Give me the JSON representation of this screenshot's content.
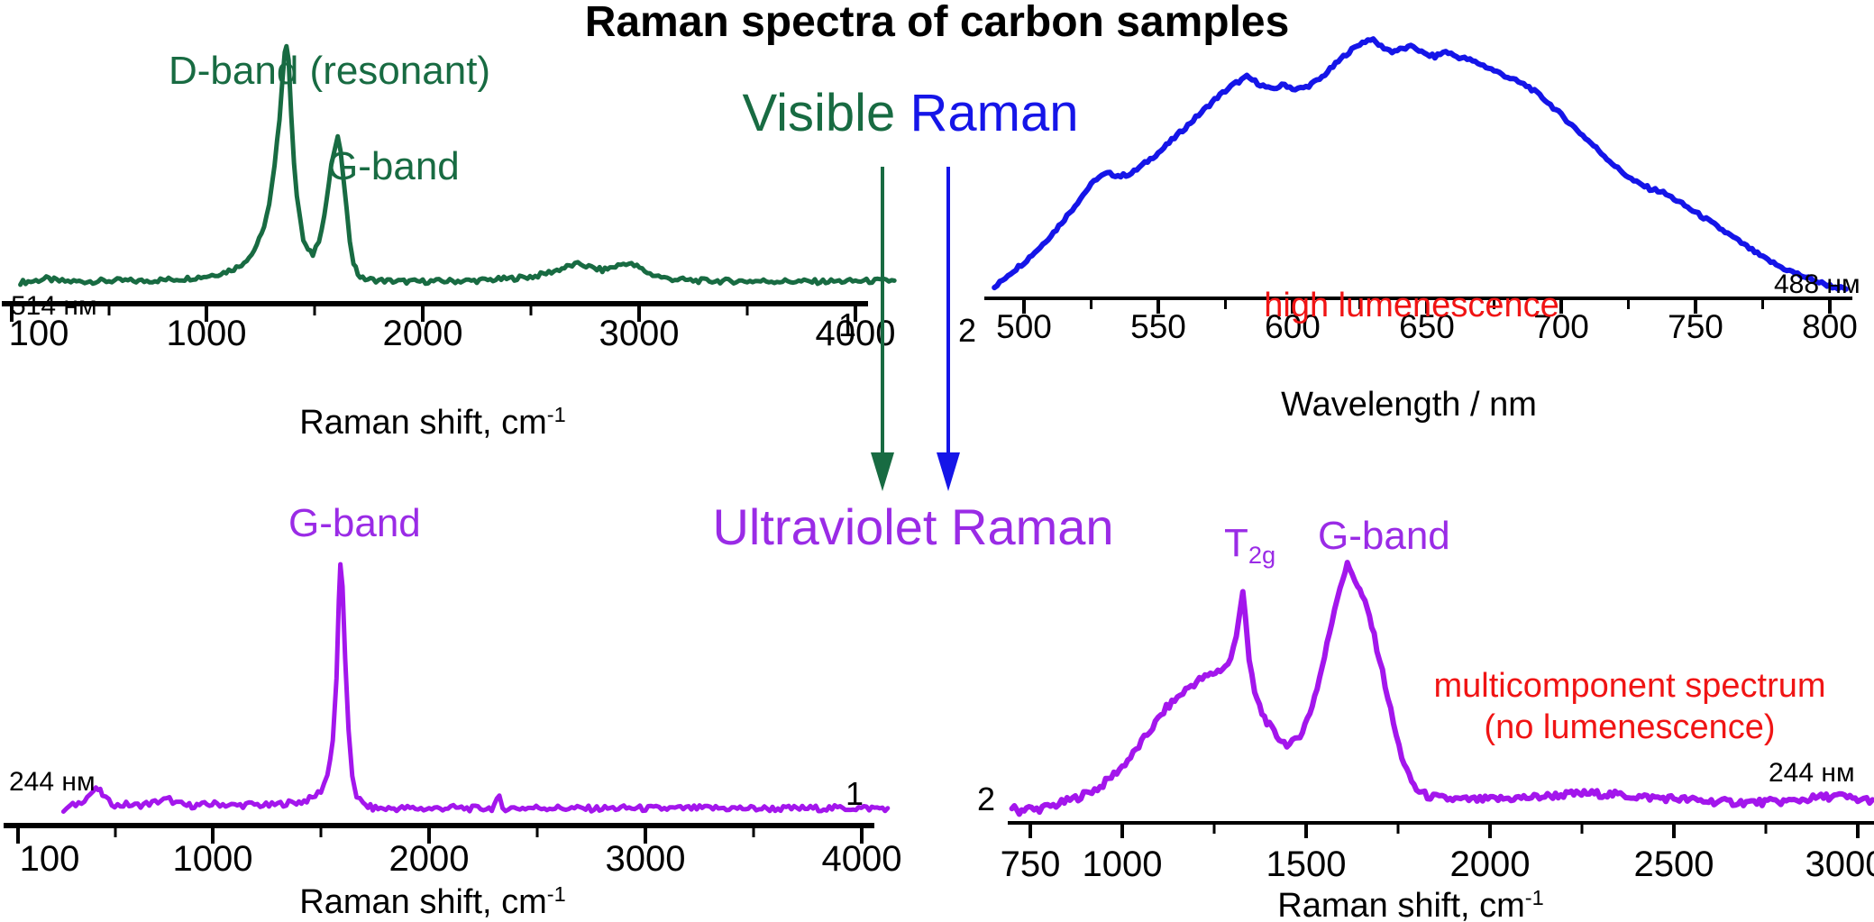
{
  "title": "Raman spectra of carbon samples",
  "headings": {
    "visible_word1": "Visible",
    "visible_word2": "Raman",
    "ultraviolet": "Ultraviolet Raman"
  },
  "colors": {
    "green": "#186B42",
    "blue": "#1515E8",
    "purple_text": "#9A2BE6",
    "purple_curve": "#A316EC",
    "red": "#F01414",
    "black": "#000000"
  },
  "arrows": [
    {
      "name": "visible-to-uv-arrow-green",
      "color": "#186B42",
      "x": 979
    },
    {
      "name": "visible-to-uv-arrow-blue",
      "color": "#1515E8",
      "x": 1052
    }
  ],
  "chart_data": [
    {
      "type": "line",
      "name": "visible-raman-sample1",
      "color": "#186B42",
      "noise": 0.01,
      "sample": "1",
      "laser": "514 нм",
      "annotations": {
        "d_band": "D-band (resonant)",
        "g_band": "G-band"
      },
      "xlabel_main": "Raman shift, cm",
      "xlabel_sup": "-1",
      "x_range": [
        100,
        4200
      ],
      "x_axis": {
        "major": [
          {
            "v": 100,
            "label": "100",
            "dx": 30
          },
          {
            "v": 1000,
            "label": "1000"
          },
          {
            "v": 2000,
            "label": "2000"
          },
          {
            "v": 3000,
            "label": "3000"
          },
          {
            "v": 4000,
            "label": "4000"
          }
        ],
        "minor": [
          550,
          1500,
          2500,
          3500
        ]
      },
      "points": [
        [
          140,
          0.025
        ],
        [
          200,
          0.03
        ],
        [
          260,
          0.04
        ],
        [
          320,
          0.03
        ],
        [
          400,
          0.028
        ],
        [
          500,
          0.03
        ],
        [
          600,
          0.032
        ],
        [
          700,
          0.03
        ],
        [
          800,
          0.035
        ],
        [
          900,
          0.04
        ],
        [
          1000,
          0.05
        ],
        [
          1080,
          0.065
        ],
        [
          1150,
          0.09
        ],
        [
          1210,
          0.14
        ],
        [
          1255,
          0.22
        ],
        [
          1290,
          0.34
        ],
        [
          1315,
          0.5
        ],
        [
          1338,
          0.7
        ],
        [
          1350,
          0.85
        ],
        [
          1362,
          0.97
        ],
        [
          1370,
          1.0
        ],
        [
          1380,
          0.93
        ],
        [
          1392,
          0.72
        ],
        [
          1405,
          0.52
        ],
        [
          1418,
          0.38
        ],
        [
          1435,
          0.27
        ],
        [
          1448,
          0.2
        ],
        [
          1470,
          0.155
        ],
        [
          1492,
          0.14
        ],
        [
          1520,
          0.2
        ],
        [
          1545,
          0.3
        ],
        [
          1577,
          0.5
        ],
        [
          1595,
          0.58
        ],
        [
          1607,
          0.615
        ],
        [
          1620,
          0.57
        ],
        [
          1633,
          0.45
        ],
        [
          1648,
          0.32
        ],
        [
          1663,
          0.2
        ],
        [
          1680,
          0.11
        ],
        [
          1700,
          0.06
        ],
        [
          1722,
          0.04
        ],
        [
          1770,
          0.035
        ],
        [
          1850,
          0.03
        ],
        [
          1950,
          0.028
        ],
        [
          2100,
          0.03
        ],
        [
          2250,
          0.032
        ],
        [
          2400,
          0.04
        ],
        [
          2520,
          0.05
        ],
        [
          2620,
          0.075
        ],
        [
          2690,
          0.095
        ],
        [
          2730,
          0.1
        ],
        [
          2780,
          0.085
        ],
        [
          2830,
          0.075
        ],
        [
          2890,
          0.09
        ],
        [
          2940,
          0.105
        ],
        [
          2990,
          0.09
        ],
        [
          3050,
          0.06
        ],
        [
          3130,
          0.04
        ],
        [
          3250,
          0.032
        ],
        [
          3400,
          0.03
        ],
        [
          3600,
          0.03
        ],
        [
          3800,
          0.028
        ],
        [
          4000,
          0.03
        ],
        [
          4180,
          0.032
        ]
      ]
    },
    {
      "type": "line",
      "name": "visible-raman-sample2-luminescence",
      "color": "#1515E8",
      "noise": 0.007,
      "sample": "2",
      "laser": "488 нм",
      "note": "high lumenescence",
      "xlabel_main": "Wavelength / nm",
      "xlabel_sup": "",
      "x_range": [
        487,
        807
      ],
      "x_axis": {
        "major": [
          {
            "v": 500,
            "label": "500"
          },
          {
            "v": 550,
            "label": "550"
          },
          {
            "v": 600,
            "label": "600"
          },
          {
            "v": 650,
            "label": "650"
          },
          {
            "v": 700,
            "label": "700"
          },
          {
            "v": 750,
            "label": "750"
          },
          {
            "v": 800,
            "label": "800"
          }
        ],
        "minor": [
          525,
          575,
          625,
          675,
          725,
          775
        ]
      },
      "points": [
        [
          489,
          0.02
        ],
        [
          494,
          0.07
        ],
        [
          500,
          0.12
        ],
        [
          506,
          0.18
        ],
        [
          512,
          0.25
        ],
        [
          518,
          0.33
        ],
        [
          523,
          0.4
        ],
        [
          527,
          0.45
        ],
        [
          531,
          0.47
        ],
        [
          536,
          0.46
        ],
        [
          540,
          0.47
        ],
        [
          545,
          0.51
        ],
        [
          551,
          0.56
        ],
        [
          558,
          0.63
        ],
        [
          565,
          0.7
        ],
        [
          572,
          0.77
        ],
        [
          578,
          0.82
        ],
        [
          583,
          0.85
        ],
        [
          588,
          0.82
        ],
        [
          592,
          0.8
        ],
        [
          597,
          0.82
        ],
        [
          601,
          0.8
        ],
        [
          605,
          0.81
        ],
        [
          610,
          0.84
        ],
        [
          615,
          0.89
        ],
        [
          620,
          0.94
        ],
        [
          625,
          0.98
        ],
        [
          629,
          1.0
        ],
        [
          633,
          0.97
        ],
        [
          637,
          0.95
        ],
        [
          641,
          0.96
        ],
        [
          645,
          0.97
        ],
        [
          649,
          0.94
        ],
        [
          653,
          0.93
        ],
        [
          657,
          0.95
        ],
        [
          661,
          0.93
        ],
        [
          665,
          0.92
        ],
        [
          670,
          0.9
        ],
        [
          676,
          0.87
        ],
        [
          682,
          0.84
        ],
        [
          688,
          0.81
        ],
        [
          694,
          0.76
        ],
        [
          700,
          0.7
        ],
        [
          707,
          0.63
        ],
        [
          714,
          0.56
        ],
        [
          721,
          0.49
        ],
        [
          727,
          0.44
        ],
        [
          733,
          0.41
        ],
        [
          737,
          0.4
        ],
        [
          742,
          0.37
        ],
        [
          748,
          0.33
        ],
        [
          754,
          0.29
        ],
        [
          761,
          0.24
        ],
        [
          768,
          0.19
        ],
        [
          775,
          0.14
        ],
        [
          782,
          0.1
        ],
        [
          789,
          0.07
        ],
        [
          795,
          0.045
        ],
        [
          801,
          0.025
        ],
        [
          806,
          0.015
        ]
      ]
    },
    {
      "type": "line",
      "name": "uv-raman-sample1",
      "color": "#A316EC",
      "noise": 0.012,
      "sample": "1",
      "laser": "244 нм",
      "annotations": {
        "g_band": "G-band"
      },
      "xlabel_main": "Raman shift, cm",
      "xlabel_sup": "-1",
      "x_range": [
        100,
        4200
      ],
      "x_axis": {
        "major": [
          {
            "v": 100,
            "label": "100",
            "dx": 35
          },
          {
            "v": 1000,
            "label": "1000"
          },
          {
            "v": 2000,
            "label": "2000"
          },
          {
            "v": 3000,
            "label": "3000"
          },
          {
            "v": 4000,
            "label": "4000"
          }
        ],
        "minor": [
          550,
          1500,
          2500,
          3500
        ]
      },
      "points": [
        [
          310,
          0.02
        ],
        [
          340,
          0.035
        ],
        [
          380,
          0.05
        ],
        [
          420,
          0.075
        ],
        [
          450,
          0.1
        ],
        [
          470,
          0.105
        ],
        [
          490,
          0.085
        ],
        [
          520,
          0.055
        ],
        [
          560,
          0.04
        ],
        [
          600,
          0.045
        ],
        [
          640,
          0.04
        ],
        [
          680,
          0.045
        ],
        [
          720,
          0.05
        ],
        [
          760,
          0.06
        ],
        [
          800,
          0.065
        ],
        [
          830,
          0.05
        ],
        [
          880,
          0.04
        ],
        [
          950,
          0.042
        ],
        [
          1020,
          0.048
        ],
        [
          1100,
          0.04
        ],
        [
          1180,
          0.045
        ],
        [
          1260,
          0.04
        ],
        [
          1340,
          0.05
        ],
        [
          1410,
          0.055
        ],
        [
          1460,
          0.07
        ],
        [
          1500,
          0.1
        ],
        [
          1530,
          0.16
        ],
        [
          1555,
          0.3
        ],
        [
          1572,
          0.55
        ],
        [
          1583,
          0.85
        ],
        [
          1590,
          1.0
        ],
        [
          1600,
          0.92
        ],
        [
          1612,
          0.62
        ],
        [
          1628,
          0.33
        ],
        [
          1645,
          0.16
        ],
        [
          1665,
          0.08
        ],
        [
          1695,
          0.045
        ],
        [
          1740,
          0.03
        ],
        [
          1800,
          0.028
        ],
        [
          1900,
          0.03
        ],
        [
          2000,
          0.027
        ],
        [
          2100,
          0.032
        ],
        [
          2200,
          0.028
        ],
        [
          2290,
          0.03
        ],
        [
          2325,
          0.07
        ],
        [
          2340,
          0.03
        ],
        [
          2420,
          0.03
        ],
        [
          2520,
          0.032
        ],
        [
          2620,
          0.03
        ],
        [
          2750,
          0.028
        ],
        [
          2900,
          0.03
        ],
        [
          3100,
          0.028
        ],
        [
          3300,
          0.03
        ],
        [
          3600,
          0.028
        ],
        [
          3900,
          0.03
        ],
        [
          4120,
          0.03
        ]
      ]
    },
    {
      "type": "line",
      "name": "uv-raman-sample2-multicomponent",
      "color": "#A316EC",
      "noise": 0.014,
      "sample": "2",
      "laser": "244 нм",
      "annotations": {
        "t2g_main": "T",
        "t2g_sub": "2g",
        "g_band": "G-band"
      },
      "note_line1": "multicomponent spectrum",
      "note_line2": "(no lumenescence)",
      "xlabel_main": "Raman shift, cm",
      "xlabel_sup": "-1",
      "x_range": [
        700,
        3050
      ],
      "x_axis": {
        "major": [
          {
            "v": 750,
            "label": "750"
          },
          {
            "v": 1000,
            "label": "1000"
          },
          {
            "v": 1500,
            "label": "1500"
          },
          {
            "v": 2000,
            "label": "2000"
          },
          {
            "v": 2500,
            "label": "2500"
          },
          {
            "v": 3000,
            "label": "3000",
            "dx": -14
          }
        ],
        "minor": [
          1250,
          1750,
          2250,
          2750
        ]
      },
      "points": [
        [
          700,
          0.05
        ],
        [
          720,
          0.035
        ],
        [
          740,
          0.05
        ],
        [
          760,
          0.04
        ],
        [
          790,
          0.05
        ],
        [
          820,
          0.06
        ],
        [
          850,
          0.075
        ],
        [
          880,
          0.09
        ],
        [
          910,
          0.11
        ],
        [
          940,
          0.13
        ],
        [
          970,
          0.17
        ],
        [
          1000,
          0.21
        ],
        [
          1030,
          0.26
        ],
        [
          1060,
          0.32
        ],
        [
          1090,
          0.38
        ],
        [
          1120,
          0.44
        ],
        [
          1150,
          0.48
        ],
        [
          1180,
          0.52
        ],
        [
          1210,
          0.55
        ],
        [
          1240,
          0.57
        ],
        [
          1260,
          0.585
        ],
        [
          1280,
          0.6
        ],
        [
          1295,
          0.63
        ],
        [
          1310,
          0.72
        ],
        [
          1320,
          0.83
        ],
        [
          1328,
          0.9
        ],
        [
          1335,
          0.8
        ],
        [
          1345,
          0.62
        ],
        [
          1360,
          0.5
        ],
        [
          1380,
          0.42
        ],
        [
          1400,
          0.37
        ],
        [
          1420,
          0.33
        ],
        [
          1440,
          0.305
        ],
        [
          1455,
          0.295
        ],
        [
          1470,
          0.31
        ],
        [
          1490,
          0.35
        ],
        [
          1510,
          0.42
        ],
        [
          1530,
          0.52
        ],
        [
          1550,
          0.64
        ],
        [
          1570,
          0.78
        ],
        [
          1585,
          0.88
        ],
        [
          1600,
          0.95
        ],
        [
          1612,
          1.0
        ],
        [
          1625,
          0.97
        ],
        [
          1640,
          0.92
        ],
        [
          1652,
          0.88
        ],
        [
          1660,
          0.85
        ],
        [
          1672,
          0.8
        ],
        [
          1685,
          0.72
        ],
        [
          1700,
          0.63
        ],
        [
          1715,
          0.53
        ],
        [
          1730,
          0.43
        ],
        [
          1745,
          0.33
        ],
        [
          1760,
          0.25
        ],
        [
          1780,
          0.17
        ],
        [
          1800,
          0.12
        ],
        [
          1830,
          0.095
        ],
        [
          1870,
          0.085
        ],
        [
          1920,
          0.08
        ],
        [
          1980,
          0.08
        ],
        [
          2050,
          0.085
        ],
        [
          2120,
          0.09
        ],
        [
          2200,
          0.1
        ],
        [
          2270,
          0.105
        ],
        [
          2340,
          0.1
        ],
        [
          2420,
          0.09
        ],
        [
          2500,
          0.085
        ],
        [
          2580,
          0.075
        ],
        [
          2660,
          0.07
        ],
        [
          2740,
          0.07
        ],
        [
          2820,
          0.075
        ],
        [
          2900,
          0.09
        ],
        [
          2950,
          0.095
        ],
        [
          3000,
          0.08
        ],
        [
          3040,
          0.08
        ]
      ]
    }
  ]
}
